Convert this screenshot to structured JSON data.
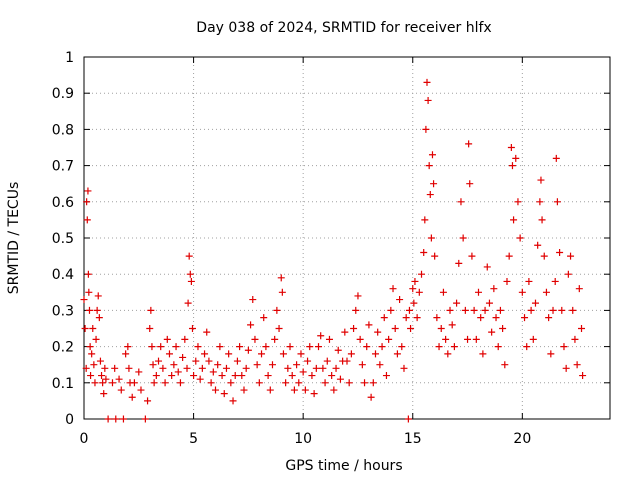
{
  "chart_data": {
    "type": "scatter",
    "title": "Day 038 of 2024, SRMTID for receiver hlfx",
    "xlabel": "GPS time / hours",
    "ylabel": "SRMTID / TECUs",
    "xlim": [
      0,
      24
    ],
    "ylim": [
      0,
      1
    ],
    "x_ticks": [
      0,
      5,
      10,
      15,
      20
    ],
    "x_tick_labels": [
      "0",
      "5",
      "10",
      "15",
      "20"
    ],
    "y_ticks": [
      0,
      0.1,
      0.2,
      0.3,
      0.4,
      0.5,
      0.6,
      0.7,
      0.8,
      0.9,
      1
    ],
    "y_tick_labels": [
      "0",
      "0.1",
      "0.2",
      "0.3",
      "0.4",
      "0.5",
      "0.6",
      "0.7",
      "0.8",
      "0.9",
      "1"
    ],
    "grid": true,
    "marker": "+",
    "series_color": "#e00000",
    "series": [
      {
        "name": "SRMTID",
        "points": [
          [
            0.0,
            0.33
          ],
          [
            0.05,
            0.25
          ],
          [
            0.1,
            0.14
          ],
          [
            0.12,
            0.6
          ],
          [
            0.15,
            0.55
          ],
          [
            0.18,
            0.63
          ],
          [
            0.2,
            0.4
          ],
          [
            0.22,
            0.35
          ],
          [
            0.25,
            0.3
          ],
          [
            0.28,
            0.2
          ],
          [
            0.3,
            0.12
          ],
          [
            0.35,
            0.18
          ],
          [
            0.4,
            0.25
          ],
          [
            0.45,
            0.15
          ],
          [
            0.5,
            0.1
          ],
          [
            0.55,
            0.22
          ],
          [
            0.6,
            0.3
          ],
          [
            0.65,
            0.34
          ],
          [
            0.7,
            0.28
          ],
          [
            0.75,
            0.16
          ],
          [
            0.8,
            0.12
          ],
          [
            0.85,
            0.1
          ],
          [
            0.9,
            0.07
          ],
          [
            0.95,
            0.14
          ],
          [
            1.0,
            0.11
          ],
          [
            1.1,
            0.0
          ],
          [
            1.3,
            0.1
          ],
          [
            1.4,
            0.14
          ],
          [
            1.45,
            0.0
          ],
          [
            1.6,
            0.11
          ],
          [
            1.7,
            0.08
          ],
          [
            1.8,
            0.0
          ],
          [
            1.9,
            0.18
          ],
          [
            2.0,
            0.2
          ],
          [
            2.05,
            0.14
          ],
          [
            2.1,
            0.1
          ],
          [
            2.2,
            0.06
          ],
          [
            2.3,
            0.1
          ],
          [
            2.5,
            0.13
          ],
          [
            2.6,
            0.08
          ],
          [
            2.8,
            0.0
          ],
          [
            2.9,
            0.05
          ],
          [
            3.0,
            0.25
          ],
          [
            3.05,
            0.3
          ],
          [
            3.1,
            0.2
          ],
          [
            3.15,
            0.15
          ],
          [
            3.2,
            0.1
          ],
          [
            3.3,
            0.12
          ],
          [
            3.4,
            0.16
          ],
          [
            3.5,
            0.2
          ],
          [
            3.6,
            0.14
          ],
          [
            3.7,
            0.1
          ],
          [
            3.8,
            0.22
          ],
          [
            3.9,
            0.18
          ],
          [
            4.0,
            0.12
          ],
          [
            4.1,
            0.15
          ],
          [
            4.2,
            0.2
          ],
          [
            4.3,
            0.13
          ],
          [
            4.4,
            0.1
          ],
          [
            4.5,
            0.17
          ],
          [
            4.6,
            0.22
          ],
          [
            4.7,
            0.14
          ],
          [
            4.75,
            0.32
          ],
          [
            4.8,
            0.45
          ],
          [
            4.85,
            0.4
          ],
          [
            4.9,
            0.38
          ],
          [
            4.95,
            0.25
          ],
          [
            5.0,
            0.12
          ],
          [
            5.1,
            0.16
          ],
          [
            5.2,
            0.2
          ],
          [
            5.3,
            0.11
          ],
          [
            5.4,
            0.14
          ],
          [
            5.5,
            0.18
          ],
          [
            5.6,
            0.24
          ],
          [
            5.7,
            0.16
          ],
          [
            5.8,
            0.1
          ],
          [
            5.9,
            0.13
          ],
          [
            6.0,
            0.08
          ],
          [
            6.1,
            0.15
          ],
          [
            6.2,
            0.2
          ],
          [
            6.3,
            0.12
          ],
          [
            6.4,
            0.07
          ],
          [
            6.5,
            0.14
          ],
          [
            6.6,
            0.18
          ],
          [
            6.7,
            0.1
          ],
          [
            6.8,
            0.05
          ],
          [
            6.9,
            0.12
          ],
          [
            7.0,
            0.16
          ],
          [
            7.1,
            0.2
          ],
          [
            7.2,
            0.12
          ],
          [
            7.3,
            0.08
          ],
          [
            7.4,
            0.14
          ],
          [
            7.5,
            0.19
          ],
          [
            7.6,
            0.26
          ],
          [
            7.7,
            0.33
          ],
          [
            7.8,
            0.22
          ],
          [
            7.9,
            0.15
          ],
          [
            8.0,
            0.1
          ],
          [
            8.1,
            0.18
          ],
          [
            8.2,
            0.28
          ],
          [
            8.3,
            0.2
          ],
          [
            8.4,
            0.12
          ],
          [
            8.5,
            0.08
          ],
          [
            8.6,
            0.15
          ],
          [
            8.7,
            0.22
          ],
          [
            8.8,
            0.3
          ],
          [
            8.9,
            0.25
          ],
          [
            9.0,
            0.39
          ],
          [
            9.05,
            0.35
          ],
          [
            9.1,
            0.18
          ],
          [
            9.2,
            0.1
          ],
          [
            9.3,
            0.14
          ],
          [
            9.4,
            0.2
          ],
          [
            9.5,
            0.12
          ],
          [
            9.6,
            0.08
          ],
          [
            9.7,
            0.15
          ],
          [
            9.8,
            0.1
          ],
          [
            9.9,
            0.18
          ],
          [
            10.0,
            0.13
          ],
          [
            10.1,
            0.08
          ],
          [
            10.2,
            0.16
          ],
          [
            10.3,
            0.2
          ],
          [
            10.4,
            0.12
          ],
          [
            10.5,
            0.07
          ],
          [
            10.6,
            0.14
          ],
          [
            10.7,
            0.2
          ],
          [
            10.8,
            0.23
          ],
          [
            10.9,
            0.14
          ],
          [
            11.0,
            0.1
          ],
          [
            11.1,
            0.16
          ],
          [
            11.2,
            0.22
          ],
          [
            11.3,
            0.12
          ],
          [
            11.4,
            0.08
          ],
          [
            11.5,
            0.14
          ],
          [
            11.6,
            0.19
          ],
          [
            11.7,
            0.11
          ],
          [
            11.8,
            0.16
          ],
          [
            11.9,
            0.24
          ],
          [
            12.0,
            0.16
          ],
          [
            12.1,
            0.1
          ],
          [
            12.2,
            0.18
          ],
          [
            12.3,
            0.25
          ],
          [
            12.4,
            0.3
          ],
          [
            12.5,
            0.34
          ],
          [
            12.6,
            0.22
          ],
          [
            12.7,
            0.15
          ],
          [
            12.8,
            0.1
          ],
          [
            12.9,
            0.2
          ],
          [
            13.0,
            0.26
          ],
          [
            13.1,
            0.06
          ],
          [
            13.2,
            0.1
          ],
          [
            13.3,
            0.18
          ],
          [
            13.4,
            0.24
          ],
          [
            13.5,
            0.15
          ],
          [
            13.6,
            0.2
          ],
          [
            13.7,
            0.28
          ],
          [
            13.8,
            0.12
          ],
          [
            13.9,
            0.22
          ],
          [
            14.0,
            0.3
          ],
          [
            14.1,
            0.36
          ],
          [
            14.2,
            0.25
          ],
          [
            14.3,
            0.18
          ],
          [
            14.4,
            0.33
          ],
          [
            14.5,
            0.2
          ],
          [
            14.6,
            0.14
          ],
          [
            14.7,
            0.28
          ],
          [
            14.8,
            0.0
          ],
          [
            14.85,
            0.3
          ],
          [
            14.9,
            0.25
          ],
          [
            15.0,
            0.36
          ],
          [
            15.05,
            0.32
          ],
          [
            15.1,
            0.38
          ],
          [
            15.2,
            0.28
          ],
          [
            15.3,
            0.35
          ],
          [
            15.4,
            0.4
          ],
          [
            15.5,
            0.46
          ],
          [
            15.55,
            0.55
          ],
          [
            15.6,
            0.8
          ],
          [
            15.65,
            0.93
          ],
          [
            15.7,
            0.88
          ],
          [
            15.75,
            0.7
          ],
          [
            15.8,
            0.62
          ],
          [
            15.85,
            0.5
          ],
          [
            15.9,
            0.73
          ],
          [
            15.95,
            0.65
          ],
          [
            16.0,
            0.45
          ],
          [
            16.1,
            0.28
          ],
          [
            16.2,
            0.2
          ],
          [
            16.3,
            0.25
          ],
          [
            16.4,
            0.35
          ],
          [
            16.5,
            0.22
          ],
          [
            16.6,
            0.18
          ],
          [
            16.7,
            0.3
          ],
          [
            16.8,
            0.26
          ],
          [
            16.9,
            0.2
          ],
          [
            17.0,
            0.32
          ],
          [
            17.1,
            0.43
          ],
          [
            17.2,
            0.6
          ],
          [
            17.3,
            0.5
          ],
          [
            17.4,
            0.3
          ],
          [
            17.5,
            0.22
          ],
          [
            17.55,
            0.76
          ],
          [
            17.6,
            0.65
          ],
          [
            17.7,
            0.45
          ],
          [
            17.8,
            0.3
          ],
          [
            17.9,
            0.22
          ],
          [
            18.0,
            0.35
          ],
          [
            18.1,
            0.28
          ],
          [
            18.2,
            0.18
          ],
          [
            18.3,
            0.3
          ],
          [
            18.4,
            0.42
          ],
          [
            18.5,
            0.32
          ],
          [
            18.6,
            0.24
          ],
          [
            18.7,
            0.36
          ],
          [
            18.8,
            0.28
          ],
          [
            18.9,
            0.2
          ],
          [
            19.0,
            0.3
          ],
          [
            19.1,
            0.25
          ],
          [
            19.2,
            0.15
          ],
          [
            19.3,
            0.38
          ],
          [
            19.4,
            0.45
          ],
          [
            19.5,
            0.75
          ],
          [
            19.55,
            0.7
          ],
          [
            19.6,
            0.55
          ],
          [
            19.7,
            0.72
          ],
          [
            19.8,
            0.6
          ],
          [
            19.9,
            0.5
          ],
          [
            20.0,
            0.35
          ],
          [
            20.1,
            0.28
          ],
          [
            20.2,
            0.2
          ],
          [
            20.3,
            0.38
          ],
          [
            20.4,
            0.3
          ],
          [
            20.5,
            0.22
          ],
          [
            20.6,
            0.32
          ],
          [
            20.7,
            0.48
          ],
          [
            20.8,
            0.6
          ],
          [
            20.85,
            0.66
          ],
          [
            20.9,
            0.55
          ],
          [
            21.0,
            0.45
          ],
          [
            21.1,
            0.35
          ],
          [
            21.2,
            0.28
          ],
          [
            21.3,
            0.18
          ],
          [
            21.4,
            0.3
          ],
          [
            21.5,
            0.38
          ],
          [
            21.55,
            0.72
          ],
          [
            21.6,
            0.6
          ],
          [
            21.7,
            0.46
          ],
          [
            21.8,
            0.3
          ],
          [
            21.9,
            0.2
          ],
          [
            22.0,
            0.14
          ],
          [
            22.1,
            0.4
          ],
          [
            22.2,
            0.45
          ],
          [
            22.3,
            0.3
          ],
          [
            22.4,
            0.22
          ],
          [
            22.5,
            0.15
          ],
          [
            22.6,
            0.36
          ],
          [
            22.7,
            0.25
          ],
          [
            22.75,
            0.12
          ]
        ]
      }
    ]
  }
}
